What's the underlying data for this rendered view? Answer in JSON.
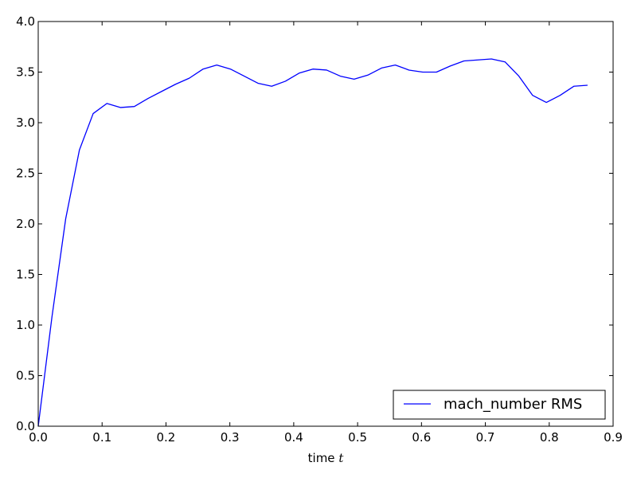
{
  "chart_data": {
    "type": "line",
    "title": "",
    "xlabel": "time",
    "xlabel_symbol": "t",
    "ylabel": "",
    "xlim": [
      0.0,
      0.9
    ],
    "ylim": [
      0.0,
      4.0
    ],
    "xticks": [
      0.0,
      0.1,
      0.2,
      0.3,
      0.4,
      0.5,
      0.6,
      0.7,
      0.8,
      0.9
    ],
    "yticks": [
      0.0,
      0.5,
      1.0,
      1.5,
      2.0,
      2.5,
      3.0,
      3.5,
      4.0
    ],
    "xtick_labels": [
      "0.0",
      "0.1",
      "0.2",
      "0.3",
      "0.4",
      "0.5",
      "0.6",
      "0.7",
      "0.8",
      "0.9"
    ],
    "ytick_labels": [
      "0.0",
      "0.5",
      "1.0",
      "1.5",
      "2.0",
      "2.5",
      "3.0",
      "3.5",
      "4.0"
    ],
    "grid": false,
    "legend_position": "bottom-right",
    "series": [
      {
        "name": "mach_number RMS",
        "color": "#0000ff",
        "x": [
          0.0,
          0.0215,
          0.043,
          0.0645,
          0.086,
          0.1075,
          0.129,
          0.1505,
          0.172,
          0.1935,
          0.215,
          0.2365,
          0.258,
          0.2795,
          0.301,
          0.3225,
          0.344,
          0.3655,
          0.387,
          0.4085,
          0.43,
          0.4515,
          0.473,
          0.4945,
          0.516,
          0.5375,
          0.559,
          0.5805,
          0.602,
          0.6235,
          0.645,
          0.6665,
          0.688,
          0.7095,
          0.731,
          0.7525,
          0.774,
          0.7955,
          0.817,
          0.8385,
          0.86
        ],
        "y": [
          0.0,
          1.08,
          2.05,
          2.73,
          3.09,
          3.19,
          3.15,
          3.16,
          3.24,
          3.31,
          3.38,
          3.44,
          3.53,
          3.57,
          3.53,
          3.46,
          3.39,
          3.36,
          3.41,
          3.49,
          3.53,
          3.52,
          3.46,
          3.43,
          3.47,
          3.54,
          3.57,
          3.52,
          3.5,
          3.5,
          3.56,
          3.61,
          3.62,
          3.63,
          3.6,
          3.46,
          3.27,
          3.2,
          3.27,
          3.36,
          3.37
        ]
      }
    ]
  }
}
